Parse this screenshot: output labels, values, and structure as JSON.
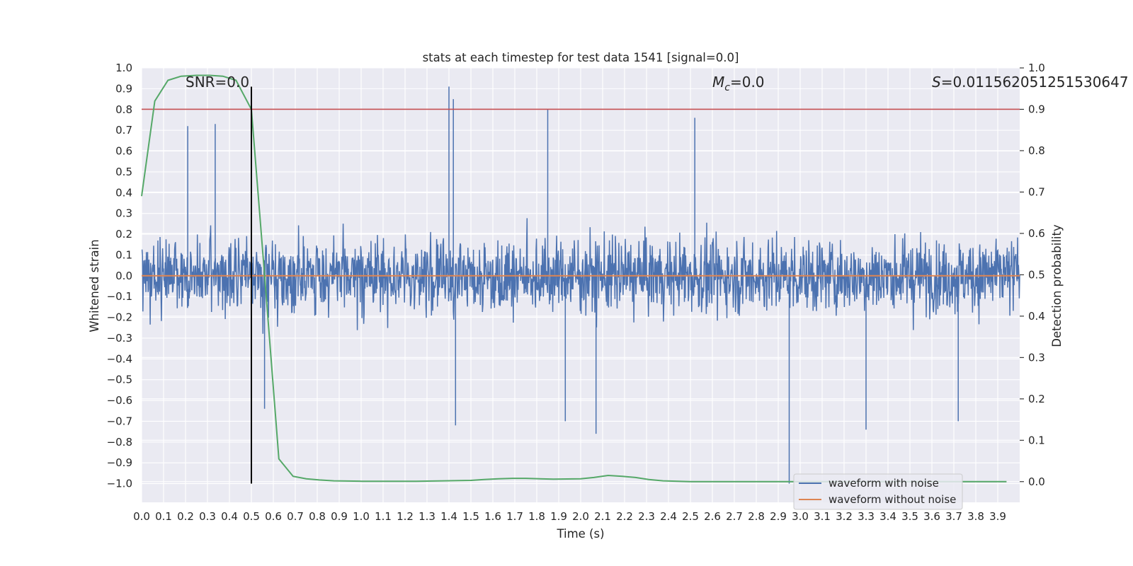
{
  "chart_data": {
    "type": "line",
    "title": "stats at each timestep for test data 1541 [signal=0.0]",
    "xlabel": "Time (s)",
    "ylabel": "Whitened strain",
    "ylabel_right": "Detection probability",
    "xlim": [
      0.0,
      4.0
    ],
    "ylim": [
      -1.09,
      1.0
    ],
    "ylim_right": [
      -0.05,
      1.0
    ],
    "xticks": [
      "0.0",
      "0.1",
      "0.2",
      "0.3",
      "0.4",
      "0.5",
      "0.6",
      "0.7",
      "0.8",
      "0.9",
      "1.0",
      "1.1",
      "1.2",
      "1.3",
      "1.4",
      "1.5",
      "1.6",
      "1.7",
      "1.8",
      "1.9",
      "2.0",
      "2.1",
      "2.2",
      "2.3",
      "2.4",
      "2.5",
      "2.6",
      "2.7",
      "2.8",
      "2.9",
      "3.0",
      "3.1",
      "3.2",
      "3.3",
      "3.4",
      "3.5",
      "3.6",
      "3.7",
      "3.8",
      "3.9"
    ],
    "yticks": [
      "1.0",
      "0.9",
      "0.8",
      "0.7",
      "0.6",
      "0.5",
      "0.4",
      "0.3",
      "0.2",
      "0.1",
      "0.0",
      "−0.1",
      "−0.2",
      "−0.3",
      "−0.4",
      "−0.5",
      "−0.6",
      "−0.7",
      "−0.8",
      "−0.9",
      "−1.0"
    ],
    "yticks_right": [
      "1.0",
      "0.9",
      "0.8",
      "0.7",
      "0.6",
      "0.5",
      "0.4",
      "0.3",
      "0.2",
      "0.1",
      "0.0"
    ],
    "grid": true,
    "background": "#eaeaf2",
    "annotations": {
      "snr": "SNR=0.0",
      "mc_symbol": "M",
      "mc_sub": "c",
      "mc_value": "=0.0",
      "s_symbol": "S",
      "s_value": "=0.011562051251530647"
    },
    "legend": {
      "position": "lower right",
      "entries": [
        {
          "label": "waveform with noise",
          "color": "#4c72b0"
        },
        {
          "label": "waveform without noise",
          "color": "#dd8452"
        }
      ]
    },
    "series": [
      {
        "name": "waveform with noise",
        "color": "#4c72b0",
        "axis": "left",
        "description": "whitened noisy strain, dense samples over 0–4 s, mostly within ±0.5",
        "samples_per_second": 512,
        "envelope": 0.5,
        "highlight_peaks": [
          [
            0.21,
            0.72
          ],
          [
            0.335,
            0.73
          ],
          [
            1.4,
            0.91
          ],
          [
            1.42,
            0.85
          ],
          [
            1.85,
            0.8
          ],
          [
            2.52,
            0.76
          ],
          [
            0.56,
            -0.64
          ],
          [
            1.43,
            -0.72
          ],
          [
            1.93,
            -0.7
          ],
          [
            2.07,
            -0.76
          ],
          [
            2.95,
            -1.0
          ],
          [
            3.3,
            -0.74
          ],
          [
            3.72,
            -0.7
          ]
        ]
      },
      {
        "name": "waveform without noise",
        "color": "#dd8452",
        "axis": "left",
        "x": [
          0.0,
          4.0
        ],
        "y": [
          0.0,
          0.0
        ]
      },
      {
        "color": "#55a868",
        "axis": "right",
        "x": [
          0.0,
          0.06,
          0.12,
          0.18,
          0.25,
          0.31,
          0.37,
          0.43,
          0.5,
          0.56,
          0.625,
          0.69,
          0.75,
          0.81,
          0.875,
          1.0,
          1.25,
          1.5,
          1.56,
          1.625,
          1.69,
          1.75,
          1.875,
          2.0,
          2.06,
          2.125,
          2.19,
          2.25,
          2.31,
          2.375,
          2.5,
          3.0,
          3.5,
          3.94
        ],
        "y": [
          0.69,
          0.92,
          0.97,
          0.98,
          0.982,
          0.982,
          0.98,
          0.97,
          0.9,
          0.5,
          0.055,
          0.013,
          0.007,
          0.004,
          0.002,
          0.001,
          0.001,
          0.003,
          0.005,
          0.007,
          0.008,
          0.008,
          0.006,
          0.007,
          0.01,
          0.015,
          0.013,
          0.01,
          0.005,
          0.002,
          0.0,
          0.0,
          0.0,
          0.0
        ]
      }
    ],
    "reference_lines": [
      {
        "orientation": "horizontal",
        "axis": "right",
        "value": 0.9,
        "color": "#c44e52"
      },
      {
        "orientation": "vertical",
        "value": 0.5,
        "from": -1.0,
        "to": 0.91,
        "color": "#000000"
      }
    ]
  }
}
